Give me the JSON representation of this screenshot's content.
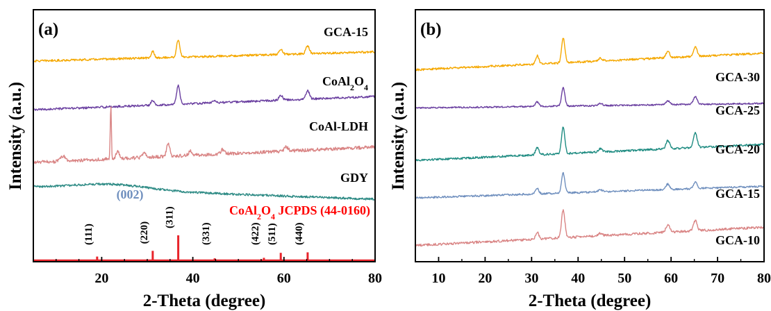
{
  "chart_data": [
    {
      "type": "line",
      "panel_label": "(a)",
      "xlabel": "2-Theta (degree)",
      "ylabel": "Intensity (a.u.)",
      "xlim": [
        5,
        80
      ],
      "xticks": [
        20,
        40,
        60,
        80
      ],
      "ytick_labels": "none",
      "grid": false,
      "series": [
        {
          "name": "GCA-15",
          "color": "#F5A800",
          "baseline": [
            0.2,
            0.42
          ],
          "noise": 0.025,
          "peaks": [
            [
              31.2,
              0.15,
              0.35
            ],
            [
              36.8,
              0.42,
              0.35
            ],
            [
              59.3,
              0.12,
              0.4
            ],
            [
              65.2,
              0.18,
              0.4
            ]
          ]
        },
        {
          "name": "CoAl₂O₄",
          "color": "#6A3FA0",
          "baseline": [
            0.03,
            0.35
          ],
          "noise": 0.025,
          "peaks": [
            [
              31.2,
              0.12,
              0.35
            ],
            [
              36.8,
              0.45,
              0.35
            ],
            [
              44.8,
              0.05,
              0.4
            ],
            [
              59.3,
              0.12,
              0.4
            ],
            [
              65.2,
              0.2,
              0.4
            ]
          ]
        },
        {
          "name": "CoAl-LDH",
          "color": "#D98484",
          "baseline": [
            0.05,
            0.42
          ],
          "noise": 0.04,
          "peaks": [
            [
              11.5,
              0.12,
              0.5
            ],
            [
              22.0,
              1.3,
              0.12
            ],
            [
              23.5,
              0.2,
              0.3
            ],
            [
              29.3,
              0.12,
              0.3
            ],
            [
              34.6,
              0.3,
              0.35
            ],
            [
              39.5,
              0.1,
              0.4
            ],
            [
              46.5,
              0.1,
              0.4
            ],
            [
              60.5,
              0.1,
              0.4
            ]
          ]
        },
        {
          "name": "GDY",
          "color": "#2E8B85",
          "baseline": [
            0.22,
            0.0
          ],
          "noise": 0.02,
          "hump": [
            22,
            0.1,
            8
          ],
          "peaks": []
        },
        {
          "name": "CoAl₂O₄ JCPDS (44-0160)",
          "color": "#E8232A",
          "type": "stick",
          "label_color": "#FF0000",
          "x": [
            19.0,
            31.2,
            36.8,
            44.8,
            55.6,
            59.3,
            65.2
          ],
          "y": [
            15,
            38,
            100,
            8,
            10,
            30,
            32
          ],
          "hkl": [
            "(111)",
            "(220)",
            "(311)",
            "(331)",
            "(422)",
            "(511)",
            "(440)"
          ]
        }
      ],
      "annotations": [
        {
          "text": "(002)",
          "color": "#6F8FBE",
          "x": 26.2
        }
      ]
    },
    {
      "type": "line",
      "panel_label": "(b)",
      "xlabel": "2-Theta (degree)",
      "ylabel": "Intensity (a.u.)",
      "xlim": [
        5,
        80
      ],
      "xticks": [
        10,
        20,
        30,
        40,
        50,
        60,
        70,
        80
      ],
      "ytick_labels": "none",
      "grid": false,
      "series": [
        {
          "name": "GCA-30",
          "color": "#F5A800",
          "baseline": [
            0.05,
            0.55
          ],
          "noise": 0.03,
          "peaks": [
            [
              31.2,
              0.25,
              0.35
            ],
            [
              36.8,
              0.75,
              0.35
            ],
            [
              44.8,
              0.08,
              0.4
            ],
            [
              59.3,
              0.2,
              0.4
            ],
            [
              65.2,
              0.3,
              0.4
            ]
          ]
        },
        {
          "name": "GCA-25",
          "color": "#6A3FA0",
          "baseline": [
            0.1,
            0.25
          ],
          "noise": 0.025,
          "peaks": [
            [
              31.2,
              0.15,
              0.35
            ],
            [
              36.8,
              0.6,
              0.35
            ],
            [
              44.8,
              0.07,
              0.4
            ],
            [
              59.3,
              0.13,
              0.4
            ],
            [
              65.2,
              0.25,
              0.4
            ]
          ]
        },
        {
          "name": "GCA-20",
          "color": "#1F8C82",
          "baseline": [
            0.02,
            0.5
          ],
          "noise": 0.03,
          "peaks": [
            [
              31.2,
              0.22,
              0.35
            ],
            [
              36.8,
              0.8,
              0.35
            ],
            [
              44.8,
              0.1,
              0.4
            ],
            [
              59.3,
              0.25,
              0.4
            ],
            [
              65.2,
              0.45,
              0.4
            ]
          ]
        },
        {
          "name": "GCA-15",
          "color": "#6F8FBE",
          "baseline": [
            0.02,
            0.4
          ],
          "noise": 0.03,
          "peaks": [
            [
              31.2,
              0.18,
              0.35
            ],
            [
              36.8,
              0.65,
              0.35
            ],
            [
              44.8,
              0.06,
              0.4
            ],
            [
              59.3,
              0.18,
              0.4
            ],
            [
              65.2,
              0.22,
              0.4
            ]
          ]
        },
        {
          "name": "GCA-10",
          "color": "#D98484",
          "baseline": [
            0.05,
            0.6
          ],
          "noise": 0.035,
          "peaks": [
            [
              31.2,
              0.2,
              0.35
            ],
            [
              36.8,
              0.85,
              0.35
            ],
            [
              44.8,
              0.08,
              0.4
            ],
            [
              59.3,
              0.22,
              0.4
            ],
            [
              65.2,
              0.3,
              0.4
            ]
          ]
        }
      ]
    }
  ]
}
